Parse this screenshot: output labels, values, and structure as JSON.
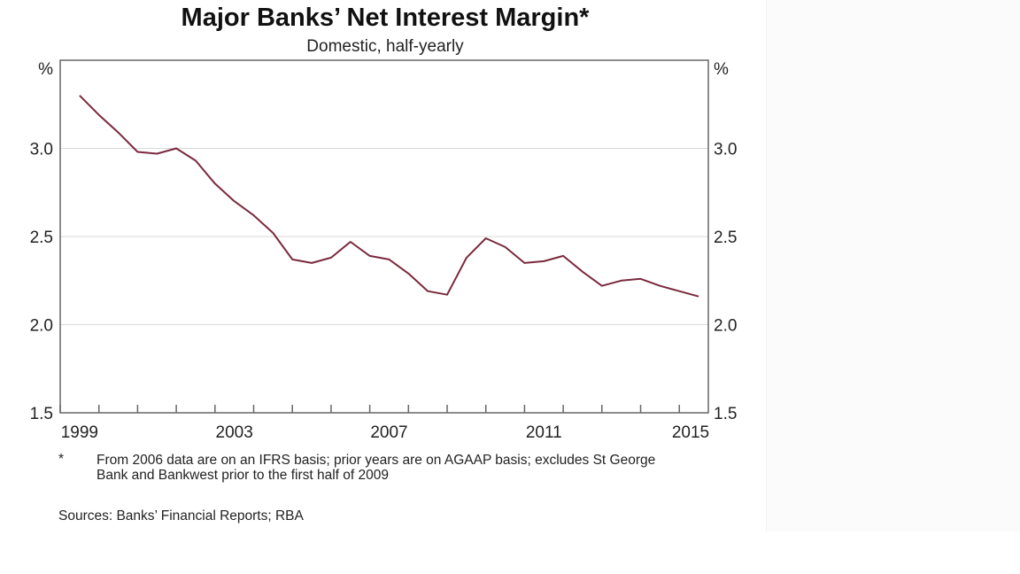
{
  "chart_data": {
    "type": "line",
    "title": "Major Banks’ Net Interest Margin*",
    "subtitle": "Domestic, half-yearly",
    "ylabel_left": "%",
    "ylabel_right": "%",
    "ylim": [
      1.5,
      3.5
    ],
    "yticks": [
      "1.5",
      "2.0",
      "2.5",
      "3.0"
    ],
    "xlim": [
      1999.0,
      2015.75
    ],
    "xticks": [
      "1999",
      "2003",
      "2007",
      "2011",
      "2015"
    ],
    "grid": true,
    "line_color": "#7a2a3c",
    "series": [
      {
        "x": [
          1999.5,
          2000.0,
          2000.5,
          2001.0,
          2001.5,
          2002.0,
          2002.5,
          2003.0,
          2003.5,
          2004.0,
          2004.5,
          2005.0,
          2005.5,
          2006.0,
          2006.5,
          2007.0,
          2007.5,
          2008.0,
          2008.5,
          2009.0,
          2009.5,
          2010.0,
          2010.5,
          2011.0,
          2011.5,
          2012.0,
          2012.5,
          2013.0,
          2013.5,
          2014.0,
          2014.5,
          2015.0,
          2015.5
        ],
        "values": [
          3.3,
          3.19,
          3.09,
          2.98,
          2.97,
          3.0,
          2.93,
          2.8,
          2.7,
          2.62,
          2.52,
          2.37,
          2.35,
          2.38,
          2.47,
          2.39,
          2.37,
          2.29,
          2.19,
          2.17,
          2.38,
          2.49,
          2.44,
          2.35,
          2.36,
          2.39,
          2.3,
          2.22,
          2.25,
          2.26,
          2.22,
          2.19,
          2.16
        ]
      }
    ]
  },
  "notes": {
    "marker": "*",
    "footnote": "From 2006 data are on an IFRS basis; prior years are on AGAAP basis; excludes St George Bank and Bankwest prior to the first half of 2009",
    "sources": "Sources:  Banks’ Financial Reports; RBA"
  }
}
